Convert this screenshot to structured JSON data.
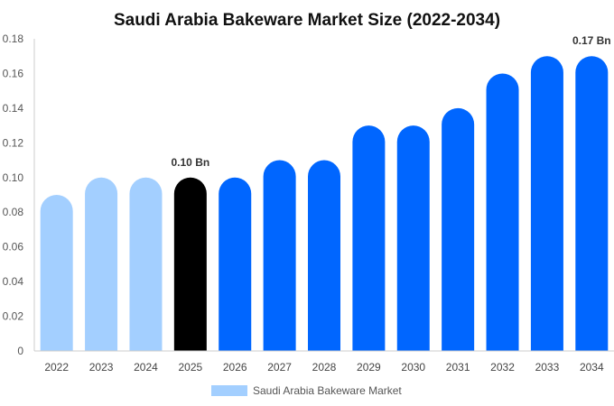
{
  "chart_data": {
    "type": "bar",
    "title": "Saudi Arabia Bakeware Market Size (2022-2034)",
    "categories": [
      "2022",
      "2023",
      "2024",
      "2025",
      "2026",
      "2027",
      "2028",
      "2029",
      "2030",
      "2031",
      "2032",
      "2033",
      "2034"
    ],
    "series": [
      {
        "name": "Saudi Arabia Bakeware Market",
        "values": [
          0.09,
          0.1,
          0.1,
          0.1,
          0.1,
          0.11,
          0.11,
          0.13,
          0.13,
          0.14,
          0.16,
          0.17,
          0.17
        ]
      }
    ],
    "bar_colors": [
      "#a3cfff",
      "#a3cfff",
      "#a3cfff",
      "#000000",
      "#0066ff",
      "#0066ff",
      "#0066ff",
      "#0066ff",
      "#0066ff",
      "#0066ff",
      "#0066ff",
      "#0066ff",
      "#0066ff"
    ],
    "data_labels": [
      {
        "index": 3,
        "text": "0.10 Bn"
      },
      {
        "index": 12,
        "text": "0.17 Bn"
      }
    ],
    "yticks": [
      "0",
      "0.02",
      "0.04",
      "0.06",
      "0.08",
      "0.10",
      "0.12",
      "0.14",
      "0.16",
      "0.18"
    ],
    "ylim": [
      0,
      0.18
    ],
    "legend": {
      "label": "Saudi Arabia Bakeware Market",
      "color": "#a3cfff",
      "position": "bottom-center"
    },
    "grid": false
  }
}
